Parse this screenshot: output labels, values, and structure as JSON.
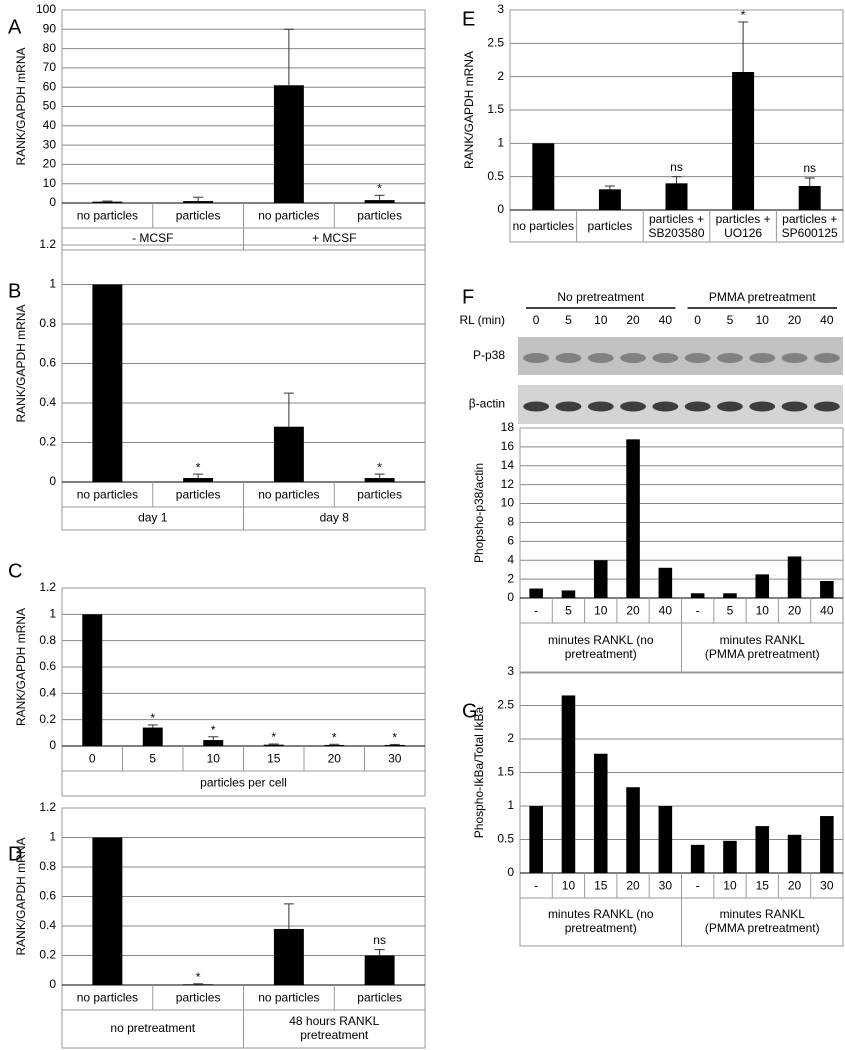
{
  "chart_data": [
    {
      "type": "bar",
      "panel": "A",
      "ylabel": "RANK/GAPDH mRNA",
      "categories": [
        "no particles",
        "particles",
        "no particles",
        "particles"
      ],
      "groups": [
        "- MCSF",
        "+ MCSF"
      ],
      "values": [
        0.7,
        1,
        61,
        1.5
      ],
      "errors": [
        0.3,
        2,
        29,
        2.5
      ],
      "annotations": [
        null,
        null,
        null,
        "*"
      ],
      "ylim": [
        0,
        100
      ],
      "yticks": [
        0,
        10,
        20,
        30,
        40,
        50,
        60,
        70,
        80,
        90,
        100
      ],
      "grid": true,
      "color": "#000000"
    },
    {
      "type": "bar",
      "panel": "B",
      "ylabel": "RANK/GAPDH mRNA",
      "categories": [
        "no particles",
        "particles",
        "no particles",
        "particles"
      ],
      "groups": [
        "day 1",
        "day 8"
      ],
      "values": [
        1,
        0.02,
        0.28,
        0.02
      ],
      "errors": [
        null,
        0.02,
        0.17,
        0.02
      ],
      "annotations": [
        null,
        "*",
        null,
        "*"
      ],
      "ylim": [
        0,
        1.2
      ],
      "yticks": [
        0,
        0.2,
        0.4,
        0.6,
        0.8,
        1,
        1.2
      ],
      "grid": true,
      "color": "#000000"
    },
    {
      "type": "bar",
      "panel": "C",
      "ylabel": "RANK/GAPDH mRNA",
      "categories": [
        "0",
        "5",
        "10",
        "15",
        "20",
        "30"
      ],
      "groups": [
        "particles per cell"
      ],
      "values": [
        1,
        0.14,
        0.045,
        0.01,
        0.008,
        0.008
      ],
      "errors": [
        null,
        0.02,
        0.025,
        0.005,
        0.005,
        0.004
      ],
      "annotations": [
        null,
        "*",
        "*",
        "*",
        "*",
        "*"
      ],
      "ylim": [
        0,
        1.2
      ],
      "yticks": [
        0,
        0.2,
        0.4,
        0.6,
        0.8,
        1,
        1.2
      ],
      "grid": true,
      "color": "#000000"
    },
    {
      "type": "bar",
      "panel": "D",
      "ylabel": "RANK/GAPDH mRNA",
      "categories": [
        "no particles",
        "particles",
        "no particles",
        "particles"
      ],
      "groups": [
        "no pretreatment",
        [
          "48 hours RANKL",
          "pretreatment"
        ]
      ],
      "values": [
        1,
        0.005,
        0.38,
        0.2
      ],
      "errors": [
        null,
        0.003,
        0.17,
        0.04
      ],
      "annotations": [
        null,
        "*",
        null,
        "ns"
      ],
      "ylim": [
        0,
        1.2
      ],
      "yticks": [
        0,
        0.2,
        0.4,
        0.6,
        0.8,
        1,
        1.2
      ],
      "grid": true,
      "color": "#000000"
    },
    {
      "type": "bar",
      "panel": "E",
      "ylabel": "RANK/GAPDH mRNA",
      "categories": [
        "no particles",
        "particles",
        [
          "particles +",
          "SB203580"
        ],
        [
          "particles +",
          "UO126"
        ],
        [
          "particles +",
          "SP600125"
        ]
      ],
      "values": [
        1,
        0.31,
        0.4,
        2.07,
        0.36
      ],
      "errors": [
        null,
        0.05,
        0.1,
        0.75,
        0.12
      ],
      "annotations": [
        null,
        null,
        "ns",
        "*",
        "ns"
      ],
      "ylim": [
        0,
        3
      ],
      "yticks": [
        0,
        0.5,
        1,
        1.5,
        2,
        2.5,
        3
      ],
      "grid": true,
      "color": "#000000"
    },
    {
      "type": "bar",
      "panel": "F",
      "ylabel": "Phopsho-p38/actin",
      "blot": {
        "groups": [
          "No pretreatment",
          "PMMA pretreatment"
        ],
        "lane_label": "RL (min)",
        "lanes": [
          "0",
          "5",
          "10",
          "20",
          "40",
          "0",
          "5",
          "10",
          "20",
          "40"
        ],
        "rows": [
          "P-p38",
          "β-actin"
        ]
      },
      "categories": [
        "-",
        "5",
        "10",
        "20",
        "40",
        "-",
        "5",
        "10",
        "20",
        "40"
      ],
      "groups": [
        [
          "minutes RANKL (no",
          "pretreatment)"
        ],
        [
          "minutes RANKL",
          "(PMMA pretreatment)"
        ]
      ],
      "values": [
        1,
        0.8,
        4,
        16.8,
        3.2,
        0.5,
        0.5,
        2.5,
        4.4,
        1.8
      ],
      "ylim": [
        0,
        18
      ],
      "yticks": [
        0,
        2,
        4,
        6,
        8,
        10,
        12,
        14,
        16,
        18
      ],
      "grid": true,
      "color": "#000000"
    },
    {
      "type": "bar",
      "panel": "G",
      "ylabel": "Phospho-IkBa/Total IkBa",
      "categories": [
        "-",
        "10",
        "15",
        "20",
        "30",
        "-",
        "10",
        "15",
        "20",
        "30"
      ],
      "groups": [
        [
          "minutes RANKL (no",
          "pretreatment)"
        ],
        [
          "minutes RANKL",
          "(PMMA pretreatment)"
        ]
      ],
      "values": [
        1,
        2.65,
        1.78,
        1.28,
        1.0,
        0.42,
        0.48,
        0.7,
        0.57,
        0.85
      ],
      "ylim": [
        0,
        3
      ],
      "yticks": [
        0,
        0.5,
        1,
        1.5,
        2,
        2.5,
        3
      ],
      "grid": true,
      "color": "#000000"
    }
  ]
}
